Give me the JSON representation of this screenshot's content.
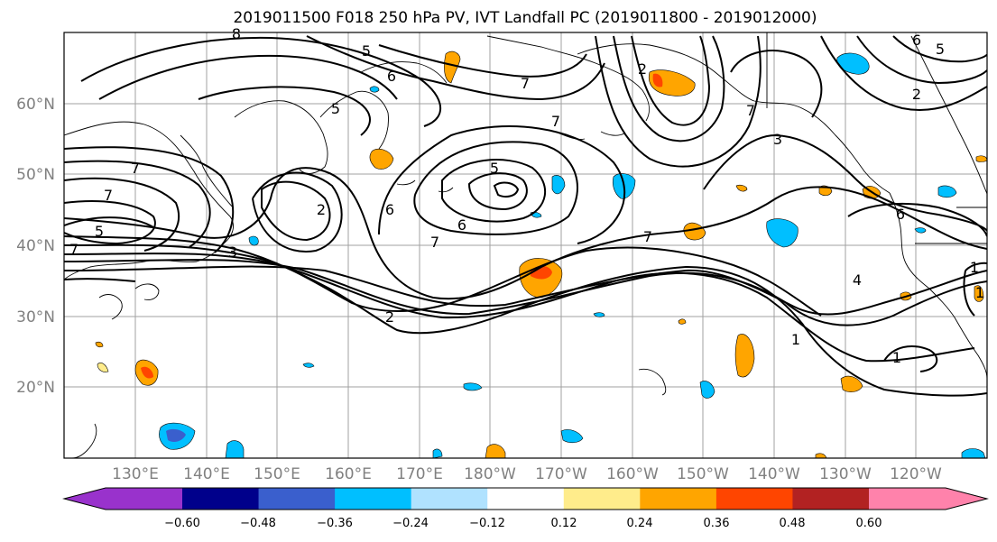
{
  "title": "2019011500 F018 250 hPa PV, IVT Landfall PC (2019011800 - 2019012000)",
  "lat_labels": [
    "60°N",
    "50°N",
    "40°N",
    "30°N",
    "20°N"
  ],
  "lon_labels": [
    "130°E",
    "140°E",
    "150°E",
    "160°E",
    "170°E",
    "180°W",
    "170°W",
    "160°W",
    "150°W",
    "140°W",
    "130°W",
    "120°W"
  ],
  "colorbar": {
    "ticks": [
      "−0.60",
      "−0.48",
      "−0.36",
      "−0.24",
      "−0.12",
      "0.12",
      "0.24",
      "0.36",
      "0.48",
      "0.60"
    ],
    "colors": [
      "#9932cc",
      "#00008b",
      "#3a5fcd",
      "#00bfff",
      "#b0e2ff",
      "#ffffff",
      "#ffec8b",
      "#ffa500",
      "#ff4500",
      "#b22222",
      "#ff82ab"
    ]
  },
  "contour_labels": [
    "8",
    "5",
    "6",
    "7",
    "2",
    "5",
    "7",
    "7",
    "7",
    "5",
    "7",
    "6",
    "2",
    "7",
    "6",
    "7",
    "5",
    "3",
    "2",
    "3",
    "6",
    "5",
    "2",
    "7",
    "4",
    "1",
    "1",
    "1",
    "1",
    "6"
  ]
}
